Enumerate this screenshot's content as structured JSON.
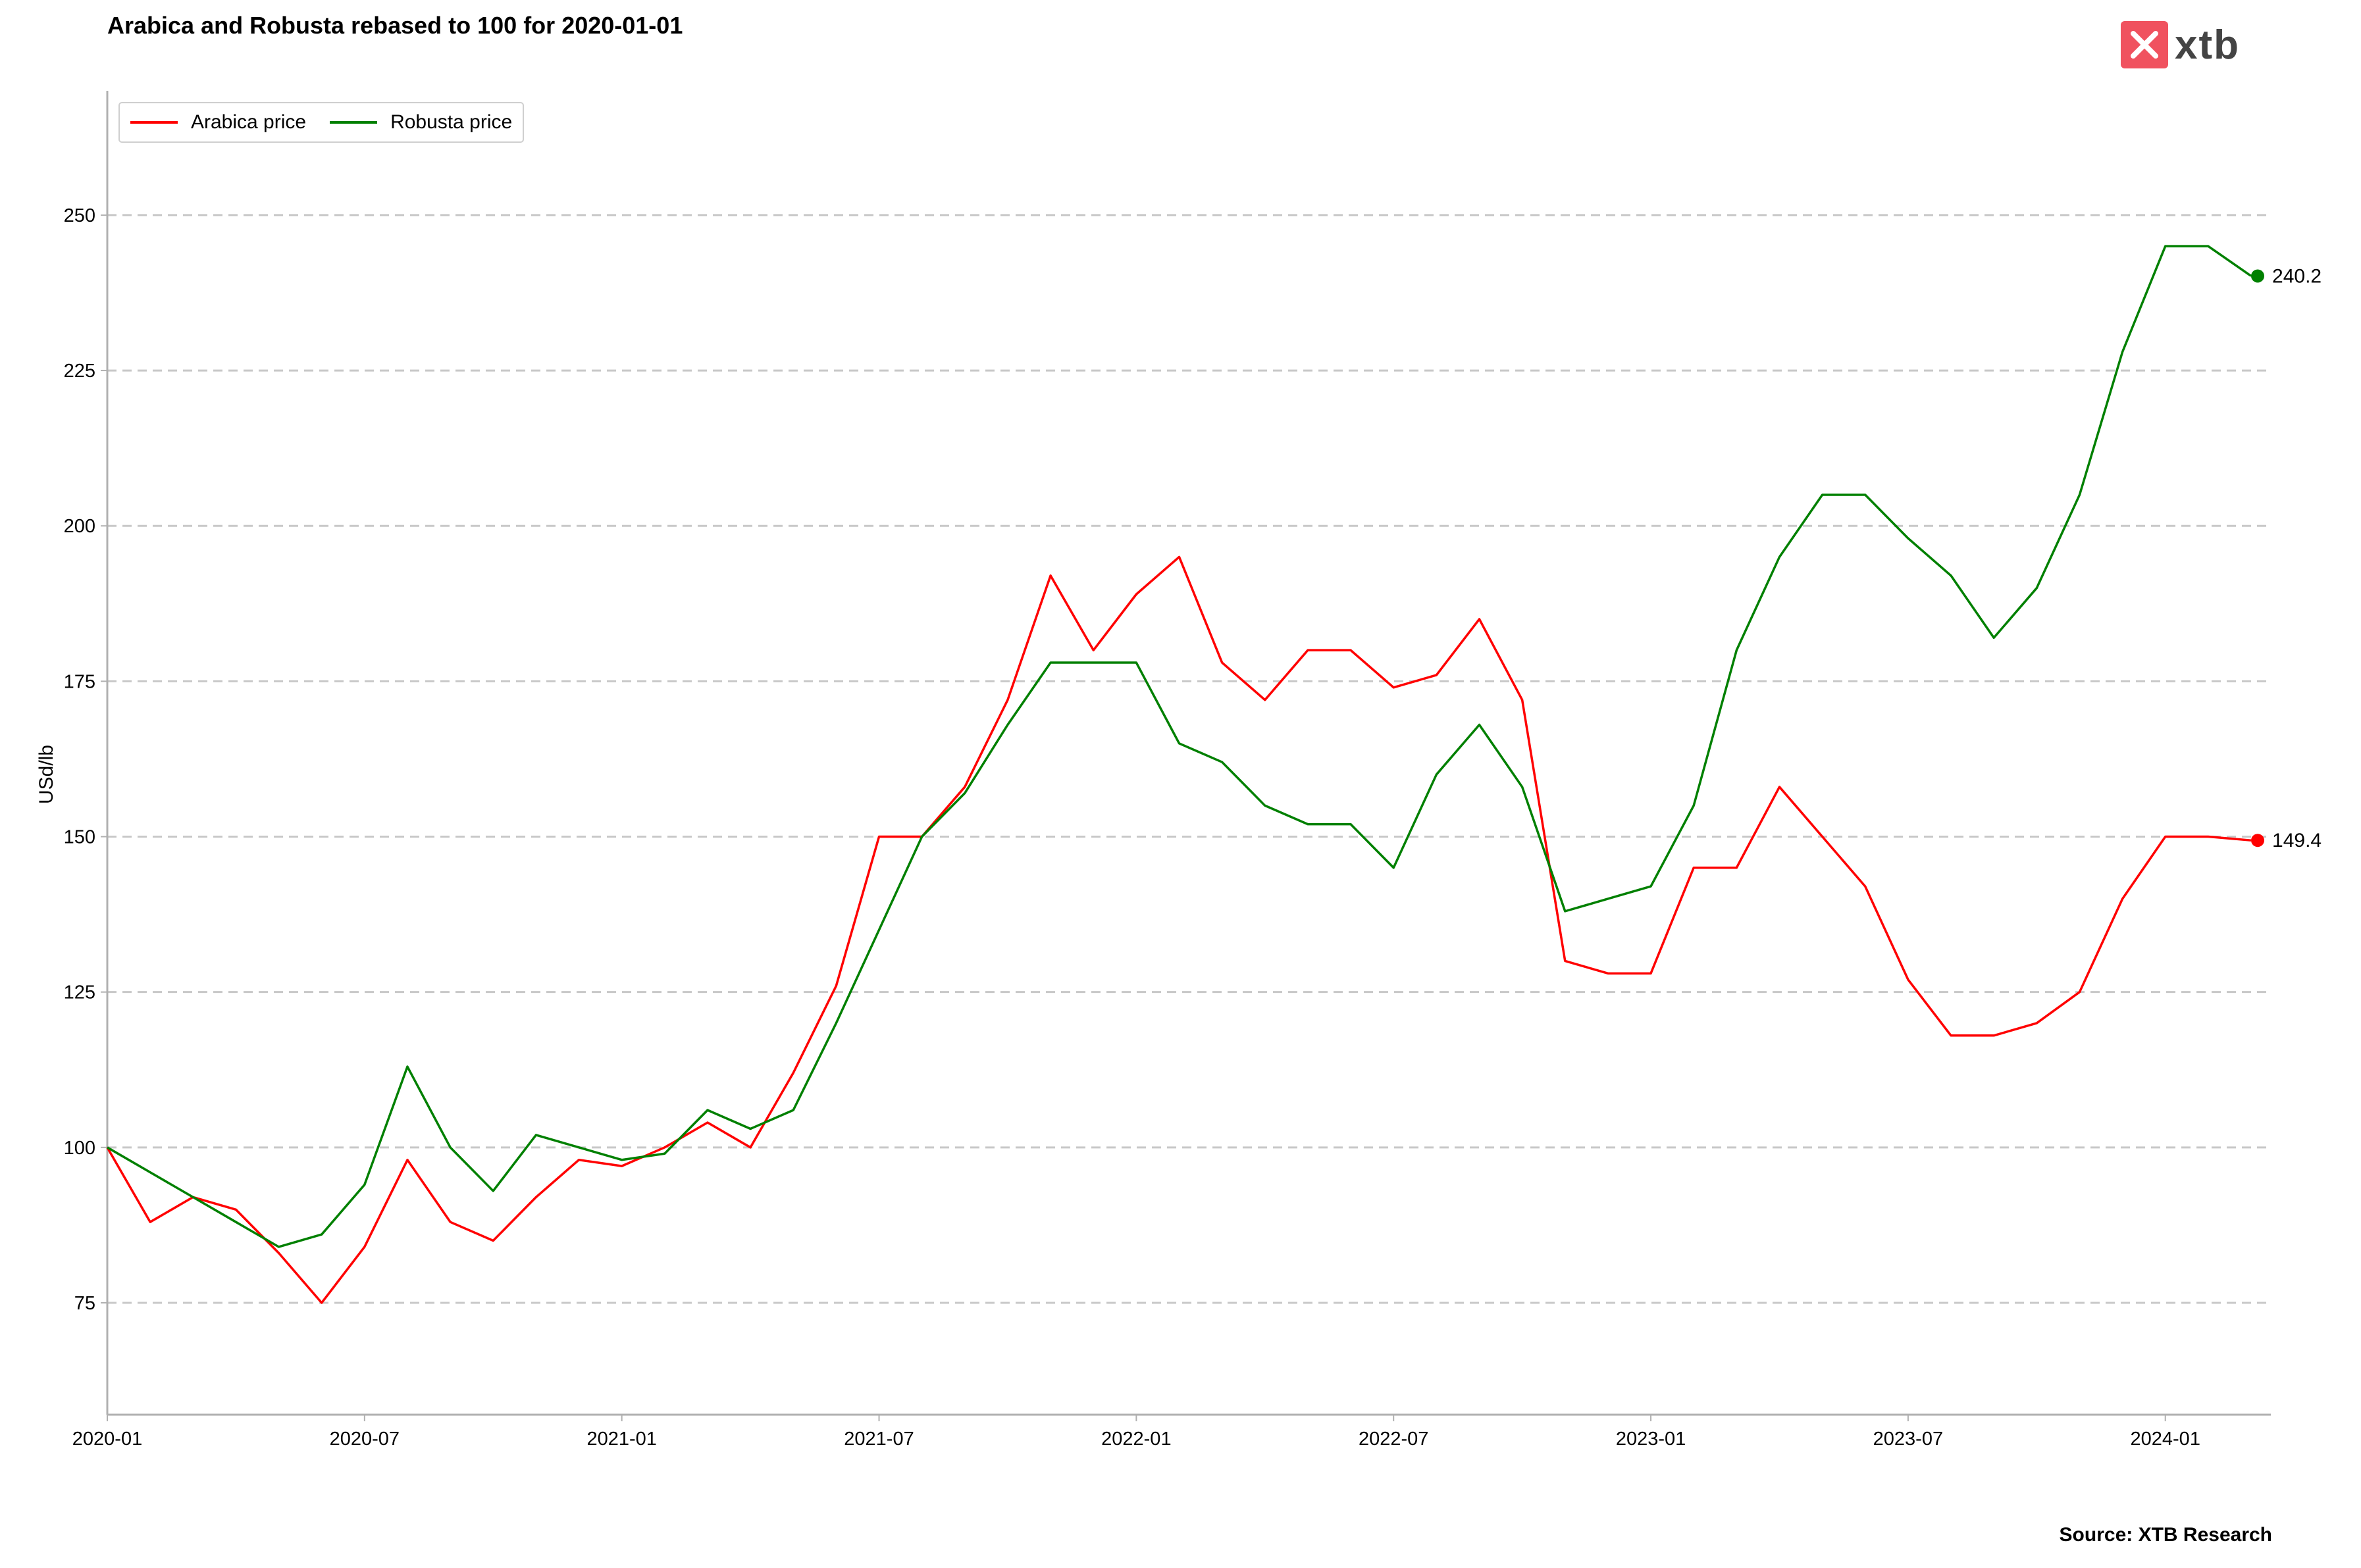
{
  "title": "Arabica and Robusta rebased to 100 for 2020-01-01",
  "ylabel": "USd/lb",
  "source": "Source: XTB Research",
  "logo": {
    "text": "xtb",
    "icon": "x-logo-icon",
    "color": "#f0525f"
  },
  "colors": {
    "arabica": "#ff0000",
    "robusta": "#008000",
    "grid": "#c8c8c8",
    "axis": "#b0b0b0"
  },
  "legend": {
    "placement": "top-left",
    "items": [
      "Arabica price",
      "Robusta price"
    ]
  },
  "end_labels": {
    "arabica": "149.4",
    "robusta": "240.2"
  },
  "chart_data": {
    "type": "line",
    "title": "Arabica and Robusta rebased to 100 for 2020-01-01",
    "xlabel": "",
    "ylabel": "USd/lb",
    "x_ticks": [
      "2020-01",
      "2020-07",
      "2021-01",
      "2021-07",
      "2022-01",
      "2022-07",
      "2023-01",
      "2023-07",
      "2024-01"
    ],
    "y_ticks": [
      75,
      100,
      125,
      150,
      175,
      200,
      225,
      250
    ],
    "xlim": [
      "2020-01",
      "2024-03-15"
    ],
    "ylim": [
      57,
      270
    ],
    "grid": "horizontal dashed",
    "x": [
      "2020-01",
      "2020-02",
      "2020-03",
      "2020-04",
      "2020-05",
      "2020-06",
      "2020-07",
      "2020-08",
      "2020-09",
      "2020-10",
      "2020-11",
      "2020-12",
      "2021-01",
      "2021-02",
      "2021-03",
      "2021-04",
      "2021-05",
      "2021-06",
      "2021-07",
      "2021-08",
      "2021-09",
      "2021-10",
      "2021-11",
      "2021-12",
      "2022-01",
      "2022-02",
      "2022-03",
      "2022-04",
      "2022-05",
      "2022-06",
      "2022-07",
      "2022-08",
      "2022-09",
      "2022-10",
      "2022-11",
      "2022-12",
      "2023-01",
      "2023-02",
      "2023-03",
      "2023-04",
      "2023-05",
      "2023-06",
      "2023-07",
      "2023-08",
      "2023-09",
      "2023-10",
      "2023-11",
      "2023-12",
      "2024-01",
      "2024-02",
      "2024-03"
    ],
    "series": [
      {
        "name": "Arabica price",
        "color": "#ff0000",
        "values": [
          100,
          88,
          92,
          90,
          83,
          75,
          84,
          98,
          88,
          85,
          92,
          98,
          97,
          100,
          104,
          100,
          112,
          126,
          150,
          150,
          158,
          172,
          192,
          180,
          189,
          195,
          178,
          172,
          180,
          180,
          174,
          176,
          185,
          172,
          130,
          128,
          128,
          145,
          145,
          158,
          150,
          142,
          127,
          118,
          118,
          120,
          125,
          140,
          150,
          150,
          149.4
        ]
      },
      {
        "name": "Robusta price",
        "color": "#008000",
        "values": [
          100,
          96,
          92,
          88,
          84,
          86,
          94,
          113,
          100,
          93,
          102,
          100,
          98,
          99,
          106,
          103,
          106,
          120,
          135,
          150,
          157,
          168,
          178,
          178,
          178,
          165,
          162,
          155,
          152,
          152,
          145,
          160,
          168,
          158,
          138,
          140,
          142,
          155,
          180,
          195,
          205,
          205,
          198,
          192,
          182,
          190,
          205,
          228,
          245,
          245,
          240.2
        ]
      }
    ]
  }
}
